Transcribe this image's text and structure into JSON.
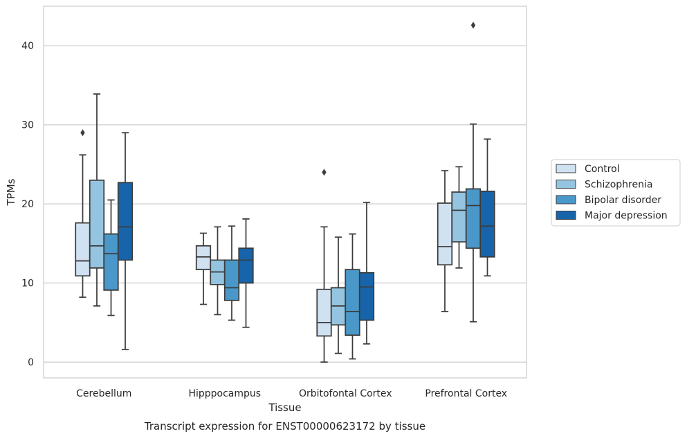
{
  "chart_data": {
    "type": "box",
    "xlabel": "Tissue",
    "ylabel": "TPMs",
    "caption": "Transcript expression for ENST00000623172 by tissue",
    "ylim": [
      -2,
      45
    ],
    "yticks": [
      0,
      10,
      20,
      30,
      40
    ],
    "grid": true,
    "legend_position": "right",
    "categories": [
      "Cerebellum",
      "Hipppocampus",
      "Orbitofontal Cortex",
      "Prefrontal Cortex"
    ],
    "series": [
      {
        "name": "Control",
        "color": "#d0e1f2",
        "boxes": [
          {
            "whislo": 8.2,
            "q1": 10.9,
            "med": 12.8,
            "q3": 17.6,
            "whishi": 26.2,
            "fliers": [
              29.0
            ]
          },
          {
            "whislo": 7.3,
            "q1": 11.7,
            "med": 13.3,
            "q3": 14.7,
            "whishi": 16.3,
            "fliers": []
          },
          {
            "whislo": 0.0,
            "q1": 3.3,
            "med": 5.0,
            "q3": 9.2,
            "whishi": 17.1,
            "fliers": [
              24.0
            ]
          },
          {
            "whislo": 6.4,
            "q1": 12.3,
            "med": 14.6,
            "q3": 20.1,
            "whishi": 24.2,
            "fliers": []
          }
        ]
      },
      {
        "name": "Schizophrenia",
        "color": "#94c4df",
        "boxes": [
          {
            "whislo": 7.1,
            "q1": 11.9,
            "med": 14.7,
            "q3": 23.0,
            "whishi": 33.9,
            "fliers": []
          },
          {
            "whislo": 6.0,
            "q1": 9.8,
            "med": 11.4,
            "q3": 12.9,
            "whishi": 17.1,
            "fliers": []
          },
          {
            "whislo": 1.1,
            "q1": 4.7,
            "med": 7.1,
            "q3": 9.4,
            "whishi": 15.8,
            "fliers": []
          },
          {
            "whislo": 11.9,
            "q1": 15.2,
            "med": 19.2,
            "q3": 21.5,
            "whishi": 24.7,
            "fliers": []
          }
        ]
      },
      {
        "name": "Bipolar disorder",
        "color": "#4a98c9",
        "boxes": [
          {
            "whislo": 5.9,
            "q1": 9.1,
            "med": 13.7,
            "q3": 16.2,
            "whishi": 20.5,
            "fliers": []
          },
          {
            "whislo": 5.3,
            "q1": 7.8,
            "med": 9.4,
            "q3": 12.9,
            "whishi": 17.2,
            "fliers": []
          },
          {
            "whislo": 0.4,
            "q1": 3.4,
            "med": 6.4,
            "q3": 11.7,
            "whishi": 16.2,
            "fliers": []
          },
          {
            "whislo": 5.1,
            "q1": 14.4,
            "med": 19.8,
            "q3": 21.9,
            "whishi": 30.1,
            "fliers": [
              42.6
            ]
          }
        ]
      },
      {
        "name": "Major depression",
        "color": "#1764ab",
        "boxes": [
          {
            "whislo": 1.6,
            "q1": 12.9,
            "med": 17.1,
            "q3": 22.7,
            "whishi": 29.0,
            "fliers": []
          },
          {
            "whislo": 4.4,
            "q1": 10.0,
            "med": 12.9,
            "q3": 14.4,
            "whishi": 18.1,
            "fliers": []
          },
          {
            "whislo": 2.3,
            "q1": 5.3,
            "med": 9.5,
            "q3": 11.3,
            "whishi": 20.2,
            "fliers": []
          },
          {
            "whislo": 10.9,
            "q1": 13.3,
            "med": 17.2,
            "q3": 21.6,
            "whishi": 28.2,
            "fliers": []
          }
        ]
      }
    ]
  }
}
